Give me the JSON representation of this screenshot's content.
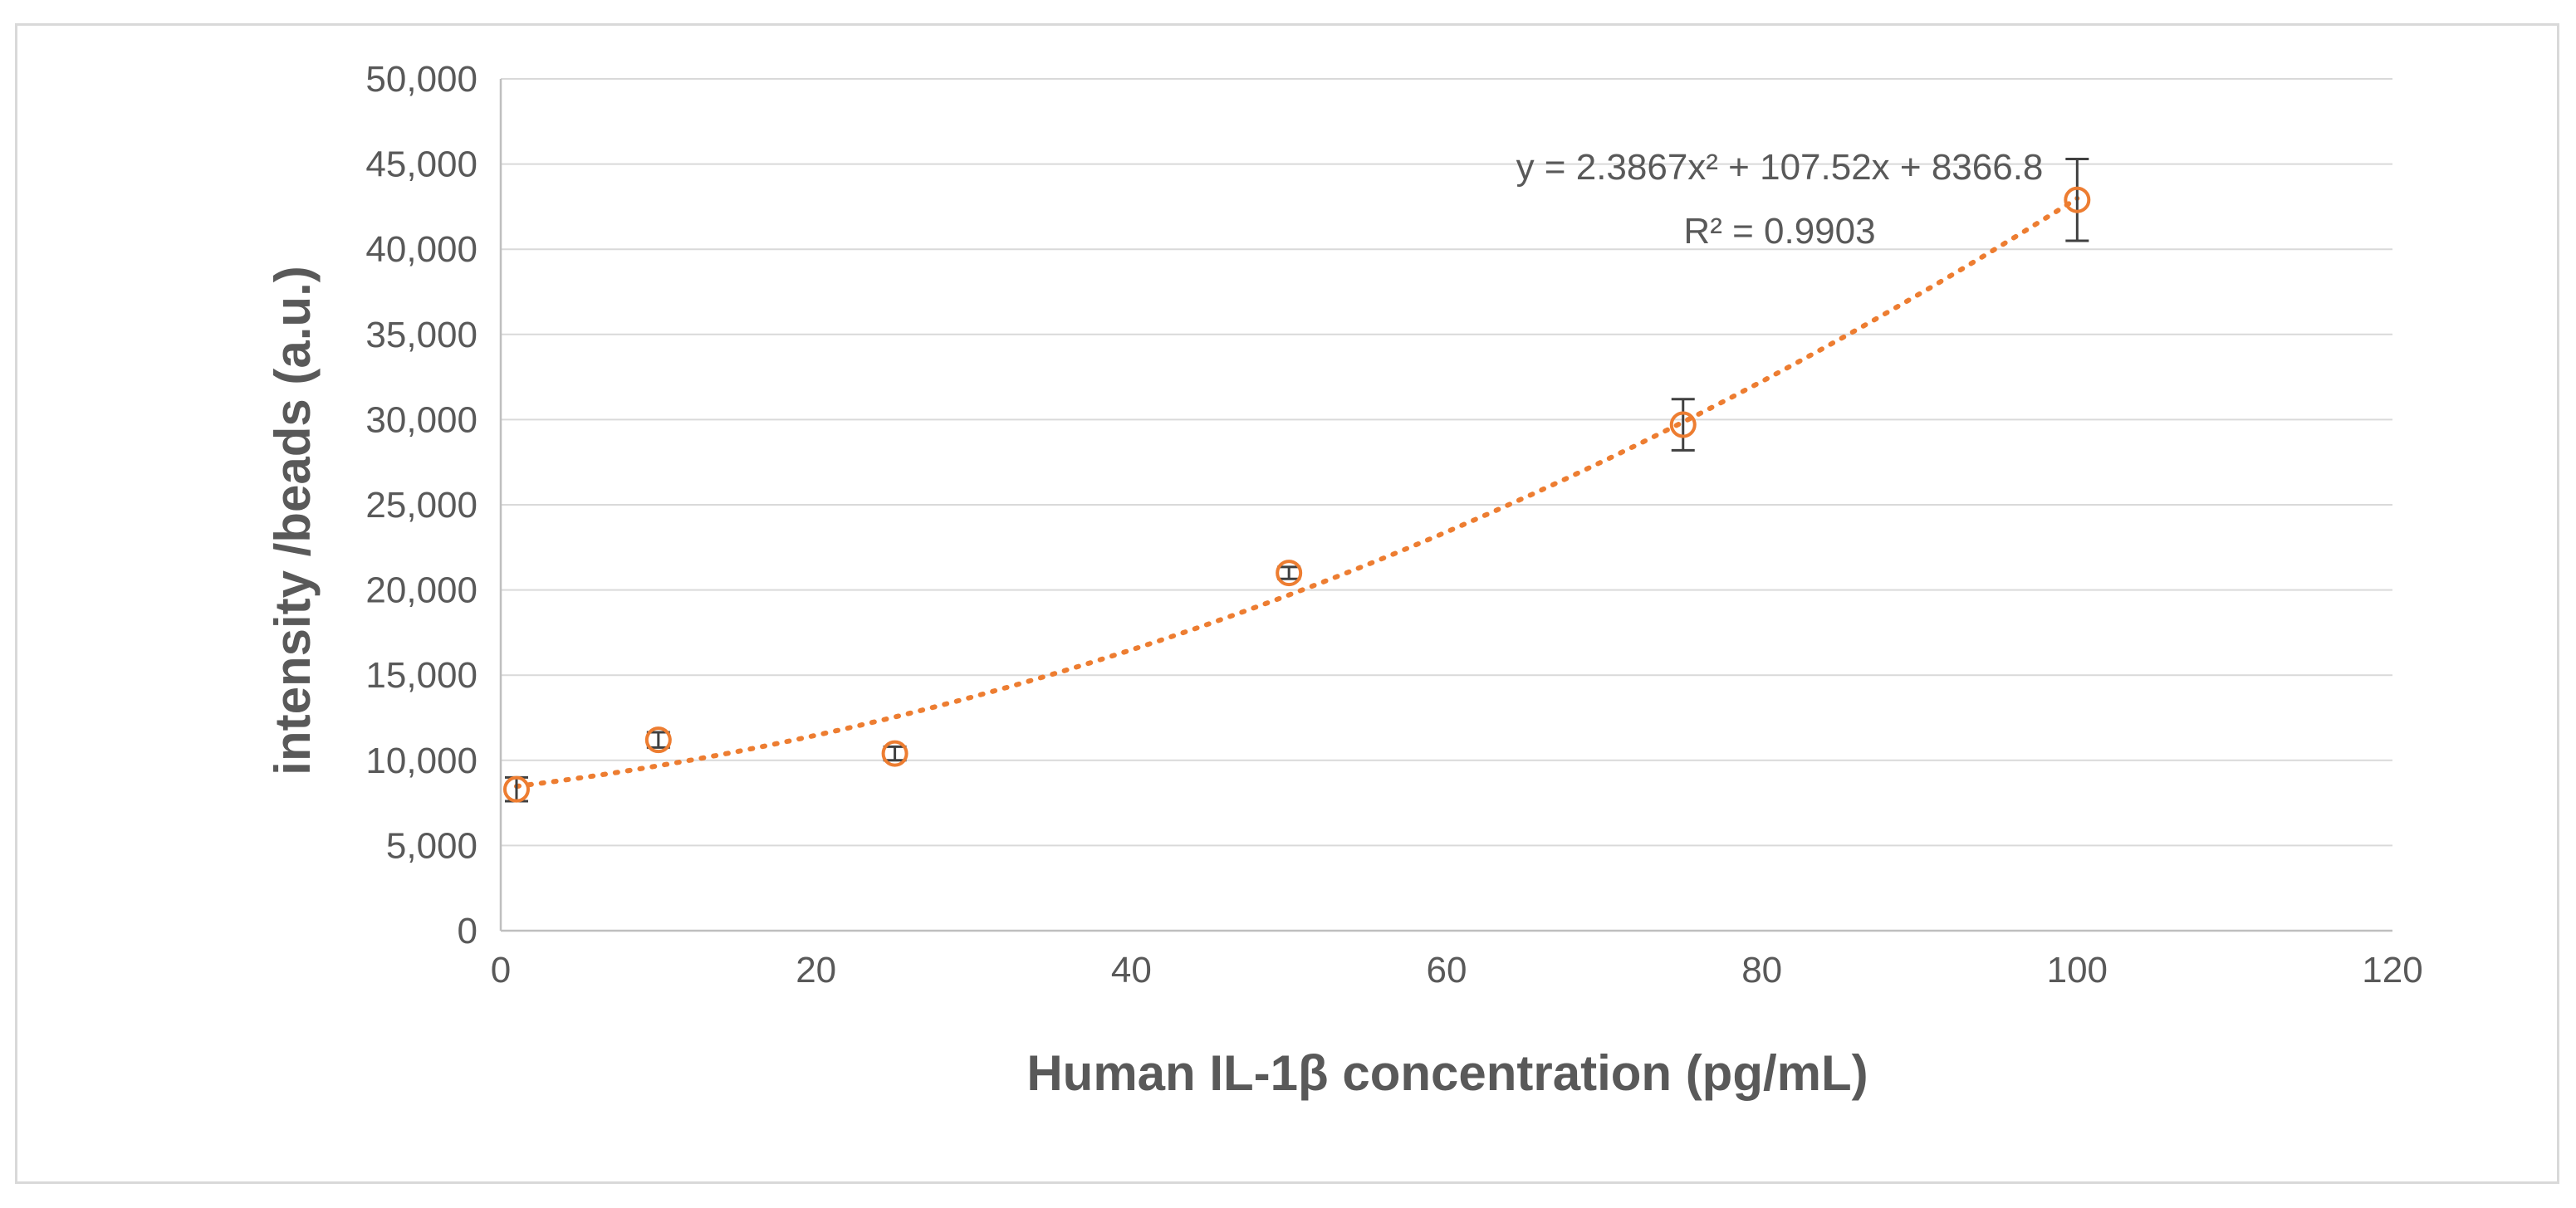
{
  "chart_data": {
    "type": "scatter",
    "xlabel": "Human IL-1β concentration (pg/mL)",
    "ylabel": "intensity /beads (a.u.)",
    "xlim": [
      0,
      120
    ],
    "ylim": [
      0,
      50000
    ],
    "x_ticks": [
      0,
      20,
      40,
      60,
      80,
      100,
      120
    ],
    "y_ticks": [
      0,
      5000,
      10000,
      15000,
      20000,
      25000,
      30000,
      35000,
      40000,
      45000,
      50000
    ],
    "x_tick_labels": [
      "0",
      "20",
      "40",
      "60",
      "80",
      "100",
      "120"
    ],
    "y_tick_labels": [
      "0",
      "5,000",
      "10,000",
      "15,000",
      "20,000",
      "25,000",
      "30,000",
      "35,000",
      "40,000",
      "45,000",
      "50,000"
    ],
    "grid": true,
    "series": [
      {
        "name": "IL-1β",
        "color": "#ED7D31",
        "marker": "open-circle",
        "x": [
          1,
          10,
          25,
          50,
          75,
          100
        ],
        "y": [
          8300,
          11200,
          10400,
          21000,
          29700,
          42900
        ],
        "error": [
          700,
          450,
          400,
          350,
          1500,
          2400
        ]
      }
    ],
    "trendline": {
      "type": "polynomial-2",
      "style": "dotted",
      "color": "#ED7D31",
      "coefficients": [
        2.3867,
        107.52,
        8366.8
      ],
      "x_range": [
        1,
        100
      ],
      "equation": "y = 2.3867x² + 107.52x + 8366.8",
      "r_squared": "R² = 0.9903"
    }
  }
}
